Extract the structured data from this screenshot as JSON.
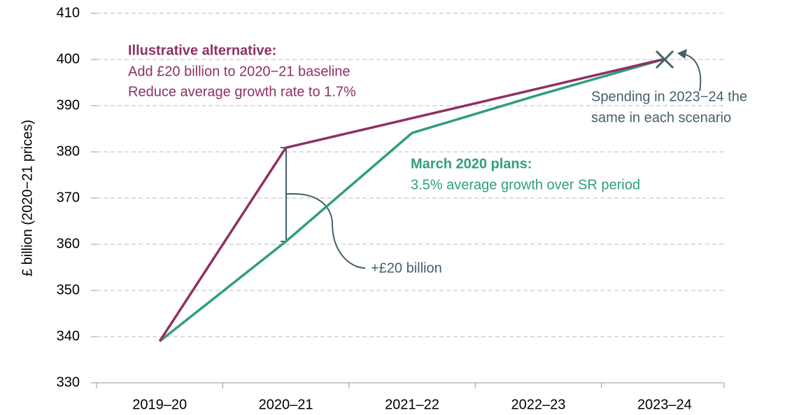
{
  "chart_data": {
    "type": "line",
    "y_label": "£ billion (2020−21 prices)",
    "categories": [
      "2019–20",
      "2020–21",
      "2021–22",
      "2022–23",
      "2023–24"
    ],
    "series": [
      {
        "name": "Illustrative alternative:",
        "color": "#8e3163",
        "values": [
          339,
          380.9,
          387.3,
          393.7,
          400.1
        ]
      },
      {
        "name": "March 2020 plans:",
        "color": "#2f9e7e",
        "values": [
          339,
          360.6,
          384.1,
          392.3,
          400.1
        ]
      }
    ],
    "ylim": [
      330,
      410
    ],
    "yticks": [
      330,
      340,
      350,
      360,
      370,
      380,
      390,
      400,
      410
    ],
    "grid": true,
    "annotations": {
      "alternative": [
        "Add £20 billion to 2020−21 baseline",
        "Reduce average growth rate to 1.7%"
      ],
      "plans": [
        "3.5% average growth over SR period"
      ],
      "same": [
        "Spending in 2023−24 the",
        "same in each scenario"
      ],
      "gap": "+£20 billion"
    }
  }
}
